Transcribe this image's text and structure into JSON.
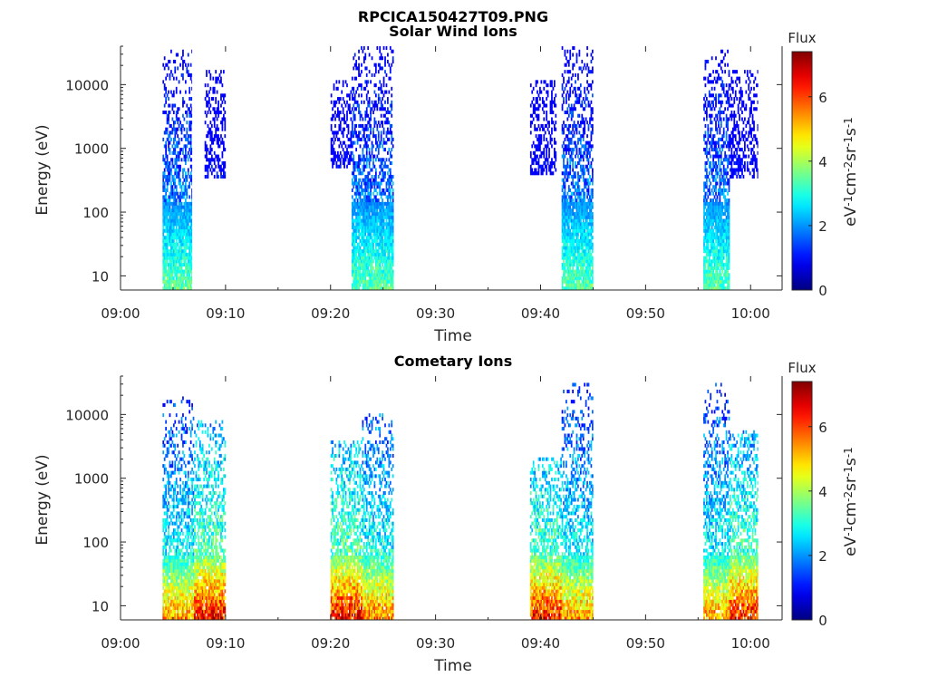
{
  "figure": {
    "title": "RPCICA150427T09.PNG"
  },
  "chart_data": [
    {
      "type": "heatmap",
      "title": "Solar Wind Ions",
      "xlabel": "Time",
      "ylabel": "Energy (eV)",
      "x_ticks": [
        "09:00",
        "09:10",
        "09:20",
        "09:30",
        "09:40",
        "09:50",
        "10:00"
      ],
      "xlim": [
        "09:00",
        "10:03"
      ],
      "y_scale": "log",
      "y_ticks": [
        10,
        100,
        1000,
        10000
      ],
      "y_tick_labels": [
        "10",
        "100",
        "1000",
        "10000"
      ],
      "ylim": [
        6,
        40000
      ],
      "colorbar": {
        "title": "Flux",
        "label": "eV-1cm-2sr-1s-1",
        "label_parts": [
          [
            "eV",
            ""
          ],
          [
            "-1",
            "sup"
          ],
          [
            "cm",
            ""
          ],
          [
            "-2",
            "sup"
          ],
          [
            "sr",
            ""
          ],
          [
            "-1",
            "sup"
          ],
          [
            "s",
            ""
          ],
          [
            "-1",
            "sup"
          ]
        ],
        "ticks": [
          0,
          2,
          4,
          6
        ],
        "range": [
          0,
          7.4
        ],
        "colormap": "jet"
      },
      "bursts": [
        {
          "start": "09:04",
          "end": "09:06.8",
          "emin": 6,
          "emax": 35000,
          "peak": 3.6,
          "cut": 150
        },
        {
          "start": "09:08",
          "end": "09:10",
          "emin": 350,
          "emax": 16000,
          "peak": 1.6,
          "cut": 150
        },
        {
          "start": "09:20",
          "end": "09:22",
          "emin": 500,
          "emax": 12000,
          "peak": 1.6,
          "cut": 150
        },
        {
          "start": "09:22",
          "end": "09:26",
          "emin": 6,
          "emax": 38000,
          "peak": 3.6,
          "cut": 150
        },
        {
          "start": "09:39",
          "end": "09:41.5",
          "emin": 400,
          "emax": 12000,
          "peak": 1.6,
          "cut": 150
        },
        {
          "start": "09:42",
          "end": "09:45",
          "emin": 6,
          "emax": 38000,
          "peak": 3.6,
          "cut": 150
        },
        {
          "start": "09:55.5",
          "end": "09:58",
          "emin": 6,
          "emax": 35000,
          "peak": 3.6,
          "cut": 150
        },
        {
          "start": "09:58",
          "end": "10:00.7",
          "emin": 350,
          "emax": 16000,
          "peak": 1.7,
          "cut": 150
        }
      ]
    },
    {
      "type": "heatmap",
      "title": "Cometary Ions",
      "xlabel": "Time",
      "ylabel": "Energy (eV)",
      "x_ticks": [
        "09:00",
        "09:10",
        "09:20",
        "09:30",
        "09:40",
        "09:50",
        "10:00"
      ],
      "xlim": [
        "09:00",
        "10:03"
      ],
      "y_scale": "log",
      "y_ticks": [
        10,
        100,
        1000,
        10000
      ],
      "y_tick_labels": [
        "10",
        "100",
        "1000",
        "10000"
      ],
      "ylim": [
        6,
        40000
      ],
      "colorbar": {
        "title": "Flux",
        "label": "eV-1cm-2sr-1s-1",
        "label_parts": [
          [
            "eV",
            ""
          ],
          [
            "-1",
            "sup"
          ],
          [
            "cm",
            ""
          ],
          [
            "-2",
            "sup"
          ],
          [
            "sr",
            ""
          ],
          [
            "-1",
            "sup"
          ],
          [
            "s",
            ""
          ],
          [
            "-1",
            "sup"
          ]
        ],
        "ticks": [
          0,
          2,
          4,
          6
        ],
        "range": [
          0,
          7.4
        ],
        "colormap": "jet"
      },
      "bursts": [
        {
          "start": "09:04",
          "end": "09:07",
          "emin": 6,
          "emax": 20000,
          "peak": 5.6,
          "cut": 60
        },
        {
          "start": "09:07",
          "end": "09:10",
          "emin": 6,
          "emax": 8000,
          "peak": 6.8,
          "cut": 60
        },
        {
          "start": "09:20",
          "end": "09:23",
          "emin": 6,
          "emax": 4000,
          "peak": 6.8,
          "cut": 60
        },
        {
          "start": "09:23",
          "end": "09:26",
          "emin": 6,
          "emax": 10000,
          "peak": 5.8,
          "cut": 60
        },
        {
          "start": "09:39",
          "end": "09:42",
          "emin": 6,
          "emax": 2000,
          "peak": 6.6,
          "cut": 60
        },
        {
          "start": "09:42",
          "end": "09:45",
          "emin": 6,
          "emax": 30000,
          "peak": 5.6,
          "cut": 60
        },
        {
          "start": "09:55.5",
          "end": "09:58",
          "emin": 6,
          "emax": 30000,
          "peak": 5.6,
          "cut": 60
        },
        {
          "start": "09:58",
          "end": "10:00.7",
          "emin": 6,
          "emax": 6000,
          "peak": 6.6,
          "cut": 60
        }
      ]
    }
  ]
}
